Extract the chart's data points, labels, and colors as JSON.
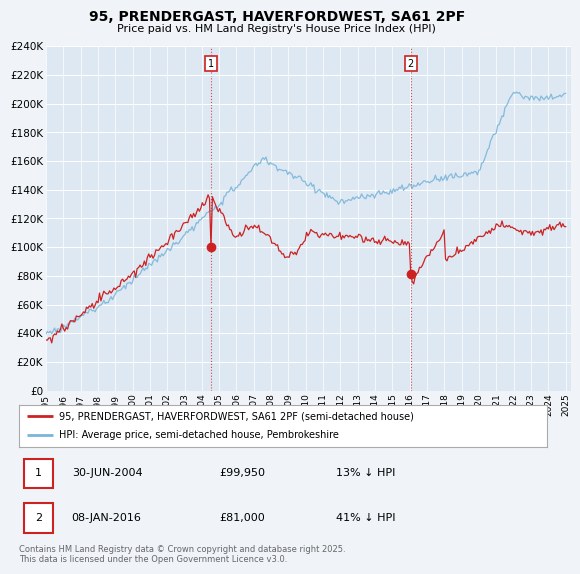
{
  "title_line1": "95, PRENDERGAST, HAVERFORDWEST, SA61 2PF",
  "title_line2": "Price paid vs. HM Land Registry's House Price Index (HPI)",
  "ylim": [
    0,
    240000
  ],
  "yticks": [
    0,
    20000,
    40000,
    60000,
    80000,
    100000,
    120000,
    140000,
    160000,
    180000,
    200000,
    220000,
    240000
  ],
  "ytick_labels": [
    "£0",
    "£20K",
    "£40K",
    "£60K",
    "£80K",
    "£100K",
    "£120K",
    "£140K",
    "£160K",
    "£180K",
    "£200K",
    "£220K",
    "£240K"
  ],
  "hpi_color": "#7ab5d9",
  "price_color": "#cc2222",
  "transaction1": {
    "date": "30-JUN-2004",
    "price": 99950,
    "pct": "13%",
    "label": "1",
    "year": 2004.5
  },
  "transaction2": {
    "date": "08-JAN-2016",
    "price": 81000,
    "pct": "41%",
    "label": "2",
    "year": 2016.03
  },
  "legend_line1": "95, PRENDERGAST, HAVERFORDWEST, SA61 2PF (semi-detached house)",
  "legend_line2": "HPI: Average price, semi-detached house, Pembrokeshire",
  "footer": "Contains HM Land Registry data © Crown copyright and database right 2025.\nThis data is licensed under the Open Government Licence v3.0.",
  "background_color": "#f0f4f8",
  "plot_bg_color": "#dde8f2"
}
